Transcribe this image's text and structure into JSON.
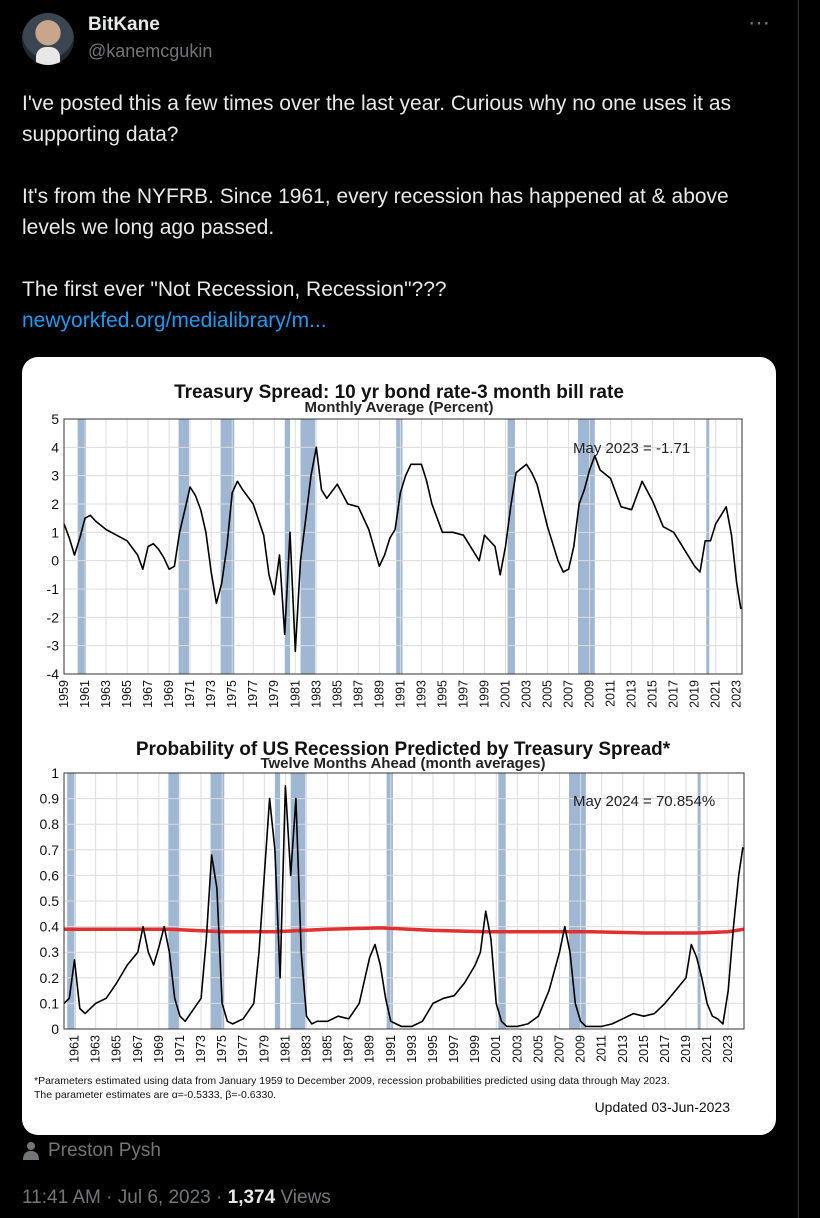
{
  "tweet": {
    "display_name": "BitKane",
    "handle": "@kanemcgukin",
    "more_icon": "⋯",
    "paragraphs": [
      "I've posted this a few times over the last year. Curious why no one uses it as supporting data?",
      "It's from the NYFRB. Since 1961, every recession has happened at & above levels we long ago passed.",
      "The first ever \"Not Recession, Recession\"???"
    ],
    "link_text": "newyorkfed.org/medialibrary/m...",
    "attribution": "Preston Pysh",
    "time": "11:41 AM",
    "date": "Jul 6, 2023",
    "separator": "·",
    "views_count": "1,374",
    "views_label": "Views",
    "colors": {
      "link": "#1d9bf0",
      "muted": "#71767b",
      "recession_band": "#9fb7d2",
      "threshold_line": "#e03030"
    }
  },
  "chart_data": [
    {
      "type": "line",
      "title": "Treasury Spread: 10 yr bond rate-3 month bill rate",
      "subtitle": "Monthly Average (Percent)",
      "annotation": "May 2023 = -1.71",
      "ylim": [
        -4,
        5
      ],
      "yticks": [
        "5",
        "4",
        "3",
        "2",
        "1",
        "0",
        "-1",
        "-2",
        "-3",
        "-4"
      ],
      "xticks": [
        "1959",
        "1961",
        "1963",
        "1965",
        "1967",
        "1969",
        "1971",
        "1973",
        "1975",
        "1977",
        "1979",
        "1981",
        "1983",
        "1985",
        "1987",
        "1989",
        "1991",
        "1993",
        "1995",
        "1997",
        "1999",
        "2001",
        "2003",
        "2005",
        "2007",
        "2009",
        "2011",
        "2013",
        "2015",
        "2017",
        "2019",
        "2021",
        "2023"
      ],
      "xlim": [
        1959,
        2023.5
      ],
      "recessions": [
        [
          1960.3,
          1961.1
        ],
        [
          1969.9,
          1970.9
        ],
        [
          1973.9,
          1975.2
        ],
        [
          1980.0,
          1980.5
        ],
        [
          1981.5,
          1982.9
        ],
        [
          1990.6,
          1991.2
        ],
        [
          2001.2,
          2001.9
        ],
        [
          2007.9,
          2009.5
        ],
        [
          2020.1,
          2020.3
        ]
      ],
      "x": [
        1959,
        1959.5,
        1960,
        1960.5,
        1961,
        1961.5,
        1962,
        1963,
        1964,
        1965,
        1966,
        1966.5,
        1967,
        1967.5,
        1968,
        1968.5,
        1969,
        1969.5,
        1970,
        1970.5,
        1971,
        1971.5,
        1972,
        1972.5,
        1973,
        1973.5,
        1974,
        1974.5,
        1975,
        1975.5,
        1976,
        1977,
        1978,
        1978.5,
        1979,
        1979.5,
        1980,
        1980.5,
        1981,
        1981.5,
        1982,
        1982.5,
        1983,
        1983.5,
        1984,
        1985,
        1986,
        1987,
        1988,
        1989,
        1989.5,
        1990,
        1990.5,
        1991,
        1991.5,
        1992,
        1993,
        1993.5,
        1994,
        1995,
        1996,
        1997,
        1998,
        1998.5,
        1999,
        2000,
        2000.5,
        2001,
        2001.5,
        2002,
        2003,
        2003.5,
        2004,
        2005,
        2006,
        2006.5,
        2007,
        2007.5,
        2008,
        2008.5,
        2009,
        2009.5,
        2010,
        2011,
        2012,
        2013,
        2014,
        2015,
        2016,
        2017,
        2018,
        2019,
        2019.5,
        2020,
        2020.5,
        2021,
        2021.5,
        2022,
        2022.5,
        2023,
        2023.4
      ],
      "values": [
        1.3,
        0.8,
        0.2,
        0.8,
        1.5,
        1.6,
        1.4,
        1.1,
        0.9,
        0.7,
        0.2,
        -0.3,
        0.5,
        0.6,
        0.4,
        0.1,
        -0.3,
        -0.2,
        1.0,
        1.8,
        2.6,
        2.3,
        1.8,
        1.0,
        -0.4,
        -1.5,
        -0.8,
        0.5,
        2.4,
        2.8,
        2.5,
        2.0,
        0.9,
        -0.5,
        -1.2,
        0.2,
        -2.6,
        1.0,
        -3.2,
        0.0,
        1.5,
        3.0,
        4.0,
        2.5,
        2.2,
        2.7,
        2.0,
        1.9,
        1.1,
        -0.2,
        0.2,
        0.8,
        1.1,
        2.4,
        3.0,
        3.4,
        3.4,
        2.8,
        2.0,
        1.0,
        1.0,
        0.9,
        0.3,
        0.0,
        0.9,
        0.5,
        -0.5,
        0.5,
        1.9,
        3.1,
        3.4,
        3.1,
        2.7,
        1.2,
        0.0,
        -0.4,
        -0.3,
        0.5,
        2.0,
        2.5,
        3.2,
        3.7,
        3.2,
        2.9,
        1.9,
        1.8,
        2.8,
        2.1,
        1.2,
        1.0,
        0.4,
        -0.2,
        -0.4,
        0.7,
        0.7,
        1.3,
        1.6,
        1.9,
        0.9,
        -0.8,
        -1.71
      ]
    },
    {
      "type": "line",
      "title": "Probability of US Recession Predicted by Treasury Spread*",
      "subtitle": "Twelve Months Ahead (month averages)",
      "annotation": "May 2024 = 70.854%",
      "ylim": [
        0,
        1
      ],
      "yticks": [
        "1",
        "0.9",
        "0.8",
        "0.7",
        "0.6",
        "0.5",
        "0.4",
        "0.3",
        "0.2",
        "0.1",
        "0"
      ],
      "xticks": [
        "1961",
        "1963",
        "1965",
        "1967",
        "1969",
        "1971",
        "1973",
        "1975",
        "1977",
        "1979",
        "1981",
        "1983",
        "1985",
        "1987",
        "1989",
        "1991",
        "1993",
        "1995",
        "1997",
        "1999",
        "2001",
        "2003",
        "2005",
        "2007",
        "2009",
        "2011",
        "2013",
        "2015",
        "2017",
        "2019",
        "2021",
        "2023"
      ],
      "xlim": [
        1960,
        2024.5
      ],
      "recessions": [
        [
          1960.3,
          1961.1
        ],
        [
          1969.9,
          1970.9
        ],
        [
          1973.9,
          1975.2
        ],
        [
          1980.0,
          1980.5
        ],
        [
          1981.5,
          1982.9
        ],
        [
          1990.6,
          1991.2
        ],
        [
          2001.2,
          2001.9
        ],
        [
          2007.9,
          2009.5
        ],
        [
          2020.1,
          2020.3
        ]
      ],
      "x": [
        1960,
        1960.5,
        1961,
        1961.5,
        1962,
        1963,
        1964,
        1965,
        1966,
        1967,
        1967.5,
        1968,
        1968.5,
        1969,
        1969.5,
        1970,
        1970.5,
        1971,
        1971.5,
        1972,
        1973,
        1973.5,
        1974,
        1974.5,
        1975,
        1975.5,
        1976,
        1977,
        1978,
        1978.5,
        1979,
        1979.5,
        1980,
        1980.5,
        1981,
        1981.5,
        1982,
        1982.5,
        1983,
        1983.5,
        1984,
        1985,
        1986,
        1987,
        1988,
        1989,
        1989.5,
        1990,
        1990.5,
        1991,
        1991.5,
        1992,
        1993,
        1994,
        1995,
        1996,
        1997,
        1998,
        1999,
        1999.5,
        2000,
        2000.5,
        2001,
        2001.5,
        2002,
        2003,
        2004,
        2005,
        2006,
        2007,
        2007.5,
        2008,
        2008.5,
        2009,
        2009.5,
        2010,
        2011,
        2012,
        2013,
        2014,
        2015,
        2016,
        2017,
        2018,
        2019,
        2019.5,
        2020,
        2020.5,
        2021,
        2021.5,
        2022,
        2022.5,
        2023,
        2023.5,
        2024,
        2024.4
      ],
      "values": [
        0.1,
        0.12,
        0.27,
        0.08,
        0.06,
        0.1,
        0.12,
        0.18,
        0.25,
        0.3,
        0.4,
        0.3,
        0.25,
        0.32,
        0.4,
        0.3,
        0.12,
        0.05,
        0.03,
        0.06,
        0.12,
        0.35,
        0.68,
        0.55,
        0.1,
        0.03,
        0.02,
        0.04,
        0.1,
        0.3,
        0.6,
        0.9,
        0.7,
        0.2,
        0.95,
        0.6,
        0.9,
        0.3,
        0.05,
        0.02,
        0.03,
        0.03,
        0.05,
        0.04,
        0.1,
        0.28,
        0.33,
        0.25,
        0.12,
        0.03,
        0.02,
        0.01,
        0.01,
        0.03,
        0.1,
        0.12,
        0.13,
        0.18,
        0.25,
        0.3,
        0.46,
        0.35,
        0.1,
        0.03,
        0.01,
        0.01,
        0.02,
        0.05,
        0.15,
        0.3,
        0.4,
        0.3,
        0.1,
        0.03,
        0.01,
        0.01,
        0.01,
        0.02,
        0.04,
        0.06,
        0.05,
        0.06,
        0.1,
        0.15,
        0.2,
        0.33,
        0.28,
        0.2,
        0.1,
        0.05,
        0.04,
        0.02,
        0.15,
        0.4,
        0.6,
        0.71
      ],
      "threshold": {
        "x": [
          1960,
          1970,
          1975,
          1980,
          1985,
          1990,
          1995,
          2000,
          2005,
          2010,
          2015,
          2020,
          2023,
          2024.5
        ],
        "values": [
          0.39,
          0.39,
          0.38,
          0.38,
          0.39,
          0.395,
          0.385,
          0.38,
          0.38,
          0.38,
          0.375,
          0.375,
          0.38,
          0.39
        ]
      }
    }
  ],
  "footnote": {
    "line1": "*Parameters estimated using data from January 1959 to December 2009, recession probabilities predicted using data through May 2023.",
    "line2": "The parameter estimates are α=-0.5333, β=-0.6330.",
    "updated": "Updated 03-Jun-2023"
  }
}
